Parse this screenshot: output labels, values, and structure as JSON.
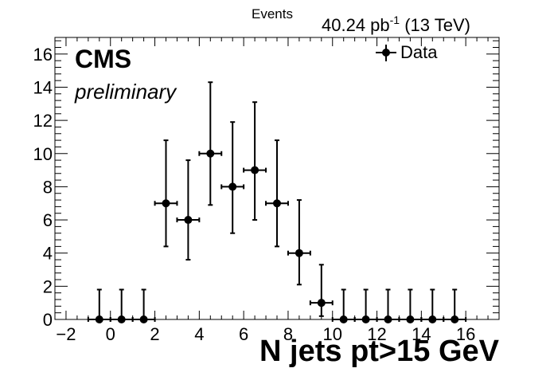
{
  "chart_data": {
    "type": "scatter",
    "title": "Events",
    "lumi": {
      "value": "40.24 pb",
      "exponent": "-1",
      "energy": " (13 TeV)"
    },
    "experiment": "CMS",
    "status": "preliminary",
    "xlabel": "N jets pt>15 GeV",
    "ylabel": "",
    "xlim": [
      -2.5,
      17.5
    ],
    "ylim": [
      0,
      17
    ],
    "xticks": [
      -2,
      0,
      2,
      4,
      6,
      8,
      10,
      12,
      14,
      16
    ],
    "xtick_labels": [
      "−2",
      "0",
      "2",
      "4",
      "6",
      "8",
      "10",
      "12",
      "14",
      "16"
    ],
    "yticks": [
      0,
      2,
      4,
      6,
      8,
      10,
      12,
      14,
      16
    ],
    "ytick_labels": [
      "0",
      "2",
      "4",
      "6",
      "8",
      "10",
      "12",
      "14",
      "16"
    ],
    "grid": false,
    "legend": {
      "position": "top-right",
      "entries": [
        "Data"
      ]
    },
    "series": [
      {
        "name": "Data",
        "x": [
          -0.5,
          0.5,
          1.5,
          2.5,
          3.5,
          4.5,
          5.5,
          6.5,
          7.5,
          8.5,
          9.5,
          10.5,
          11.5,
          12.5,
          13.5,
          14.5,
          15.5
        ],
        "y": [
          0,
          0,
          0,
          7,
          6,
          10,
          8,
          9,
          7,
          4,
          1,
          0,
          0,
          0,
          0,
          0,
          0
        ],
        "x_err": 0.5,
        "y_err_low": [
          0,
          0,
          0,
          2.6,
          2.4,
          3.1,
          2.8,
          3.0,
          2.6,
          1.9,
          0.8,
          0,
          0,
          0,
          0,
          0,
          0
        ],
        "y_err_high": [
          1.8,
          1.8,
          1.8,
          3.8,
          3.6,
          4.3,
          3.9,
          4.1,
          3.8,
          3.2,
          2.3,
          1.8,
          1.8,
          1.8,
          1.8,
          1.8,
          1.8
        ]
      }
    ]
  }
}
